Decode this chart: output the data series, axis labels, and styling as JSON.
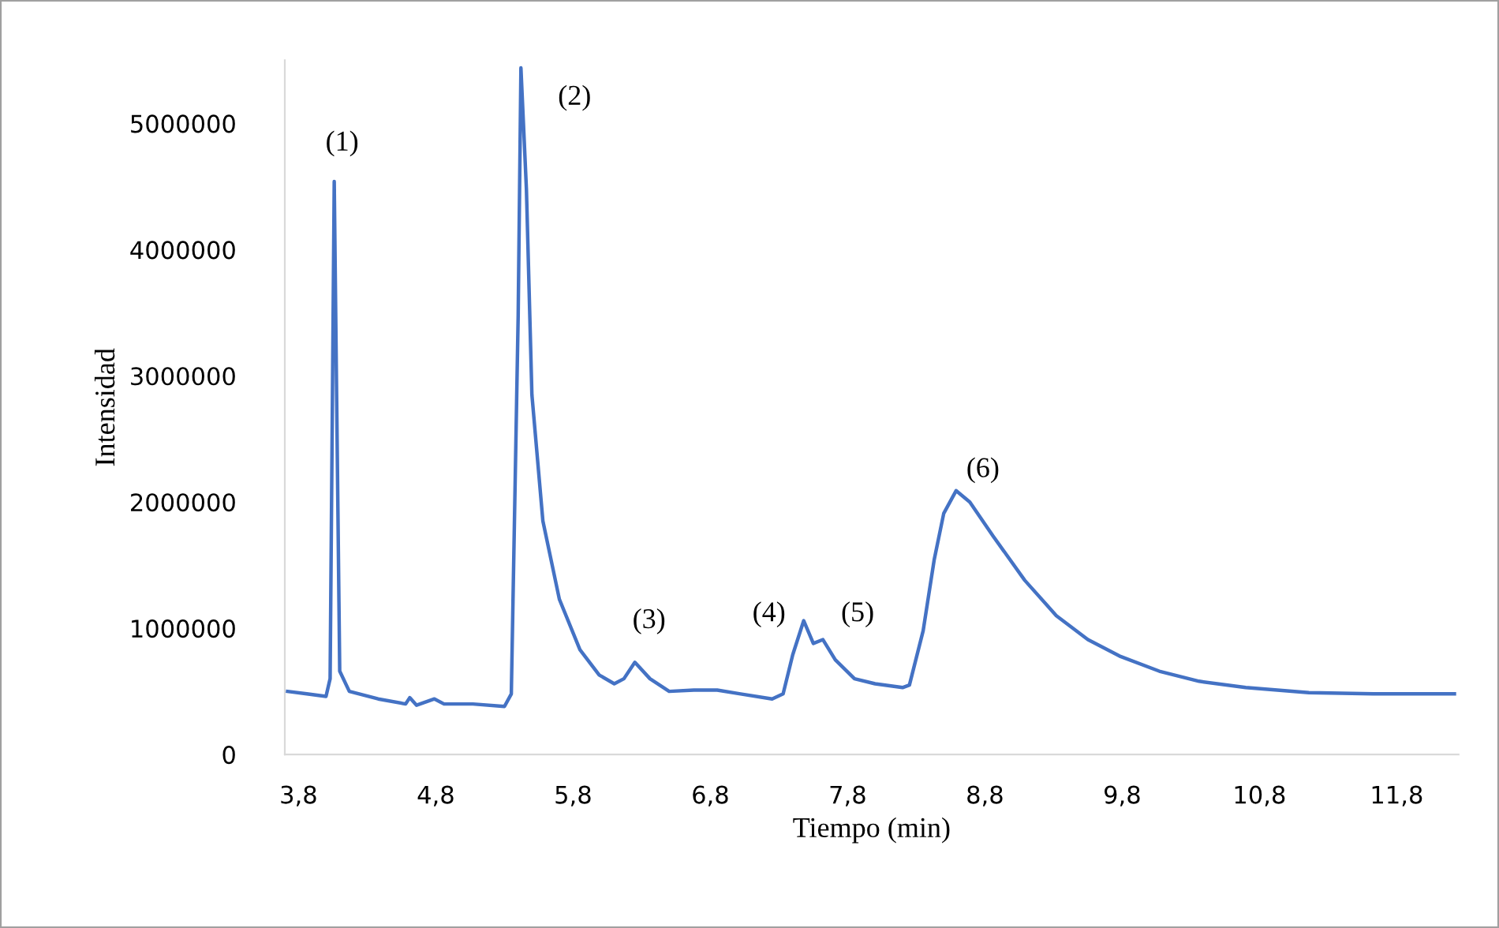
{
  "chart_data": {
    "type": "line",
    "xlabel": "Tiempo (min)",
    "ylabel": "Intensidad",
    "xlim": [
      3.7,
      12.25
    ],
    "ylim": [
      0,
      5500000
    ],
    "xticks": [
      {
        "value": 3.8,
        "label": "3,8"
      },
      {
        "value": 4.8,
        "label": "4,8"
      },
      {
        "value": 5.8,
        "label": "5,8"
      },
      {
        "value": 6.8,
        "label": "6,8"
      },
      {
        "value": 7.8,
        "label": "7,8"
      },
      {
        "value": 8.8,
        "label": "8,8"
      },
      {
        "value": 9.8,
        "label": "9,8"
      },
      {
        "value": 10.8,
        "label": "10,8"
      },
      {
        "value": 11.8,
        "label": "11,8"
      }
    ],
    "yticks": [
      0,
      1000000,
      2000000,
      3000000,
      4000000,
      5000000
    ],
    "marker": "none",
    "line_style": "solid",
    "series": [
      {
        "color": "#4472c4",
        "x": [
          3.72,
          3.86,
          4.0,
          4.03,
          4.06,
          4.1,
          4.17,
          4.38,
          4.58,
          4.61,
          4.66,
          4.79,
          4.86,
          5.07,
          5.3,
          5.35,
          5.4,
          5.42,
          5.46,
          5.5,
          5.58,
          5.7,
          5.85,
          5.99,
          6.1,
          6.17,
          6.25,
          6.36,
          6.5,
          6.68,
          6.85,
          7.02,
          7.25,
          7.33,
          7.4,
          7.48,
          7.55,
          7.62,
          7.71,
          7.85,
          8.0,
          8.2,
          8.25,
          8.35,
          8.43,
          8.5,
          8.59,
          8.69,
          8.86,
          9.09,
          9.32,
          9.55,
          9.78,
          10.07,
          10.36,
          10.7,
          11.16,
          11.63,
          12.22
        ],
        "values": [
          500000,
          480000,
          460000,
          600000,
          4540000,
          660000,
          500000,
          440000,
          400000,
          450000,
          390000,
          440000,
          400000,
          400000,
          380000,
          480000,
          3480000,
          5440000,
          4480000,
          2850000,
          1850000,
          1230000,
          830000,
          630000,
          560000,
          600000,
          730000,
          600000,
          500000,
          510000,
          510000,
          480000,
          440000,
          480000,
          790000,
          1060000,
          880000,
          910000,
          750000,
          600000,
          560000,
          530000,
          550000,
          980000,
          1540000,
          1910000,
          2090000,
          2000000,
          1730000,
          1380000,
          1100000,
          910000,
          780000,
          660000,
          580000,
          530000,
          490000,
          480000,
          480000
        ]
      }
    ],
    "annotations": [
      {
        "text": "(1)",
        "x": 4.06,
        "y": 4540000
      },
      {
        "text": "(2)",
        "x": 5.42,
        "y": 5440000
      },
      {
        "text": "(3)",
        "x": 6.25,
        "y": 730000
      },
      {
        "text": "(4)",
        "x": 7.48,
        "y": 1060000
      },
      {
        "text": "(5)",
        "x": 7.62,
        "y": 910000
      },
      {
        "text": "(6)",
        "x": 8.59,
        "y": 2090000
      }
    ]
  }
}
